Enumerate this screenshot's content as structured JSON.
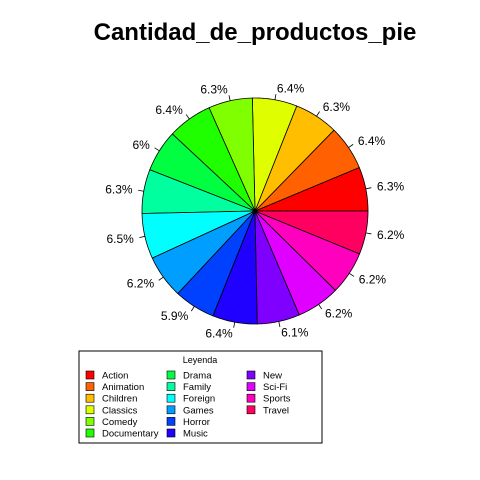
{
  "chart_data": {
    "type": "pie",
    "title": "Cantidad_de_productos_pie",
    "legend_title": "Leyenda",
    "legend_position": "bottom",
    "slices": [
      {
        "category": "Action",
        "value": 6.3,
        "label": "6.3%",
        "color": "#FF0000"
      },
      {
        "category": "Animation",
        "value": 6.4,
        "label": "6.4%",
        "color": "#FF6000"
      },
      {
        "category": "Children",
        "value": 6.3,
        "label": "6.3%",
        "color": "#FFBF00"
      },
      {
        "category": "Classics",
        "value": 6.4,
        "label": "6.4%",
        "color": "#DFFF00"
      },
      {
        "category": "Comedy",
        "value": 6.3,
        "label": "6.3%",
        "color": "#80FF00"
      },
      {
        "category": "Documentary",
        "value": 6.4,
        "label": "6.4%",
        "color": "#20FF00"
      },
      {
        "category": "Drama",
        "value": 6.0,
        "label": "6%",
        "color": "#00FF40"
      },
      {
        "category": "Family",
        "value": 6.3,
        "label": "6.3%",
        "color": "#00FF9F"
      },
      {
        "category": "Foreign",
        "value": 6.5,
        "label": "6.5%",
        "color": "#00FFFF"
      },
      {
        "category": "Games",
        "value": 6.2,
        "label": "6.2%",
        "color": "#009FFF"
      },
      {
        "category": "Horror",
        "value": 5.9,
        "label": "5.9%",
        "color": "#0040FF"
      },
      {
        "category": "Music",
        "value": 6.4,
        "label": "6.4%",
        "color": "#2000FF"
      },
      {
        "category": "New",
        "value": 6.1,
        "label": "6.1%",
        "color": "#8000FF"
      },
      {
        "category": "Sci-Fi",
        "value": 6.2,
        "label": "6.2%",
        "color": "#DF00FF"
      },
      {
        "category": "Sports",
        "value": 6.2,
        "label": "6.2%",
        "color": "#FF00BF"
      },
      {
        "category": "Travel",
        "value": 6.2,
        "label": "6.2%",
        "color": "#FF0060"
      }
    ],
    "direction": "counterclockwise",
    "start": "3 o'clock"
  }
}
